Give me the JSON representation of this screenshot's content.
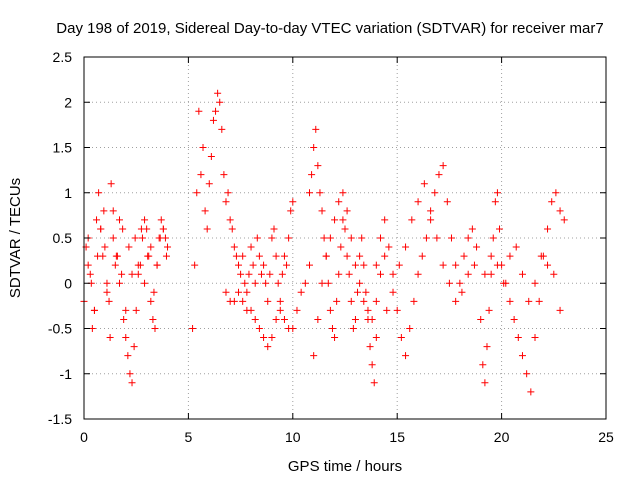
{
  "chart_data": {
    "type": "scatter",
    "title": "Day 198 of 2019, Sidereal Day-to-day VTEC variation (SDTVAR) for receiver mar7",
    "xlabel": "GPS time / hours",
    "ylabel": "SDTVAR / TECUs",
    "xlim": [
      0,
      25
    ],
    "ylim": [
      -1.5,
      2.5
    ],
    "xticks": [
      0,
      5,
      10,
      15,
      20,
      25
    ],
    "xtick_labels": [
      "0",
      "5",
      "10",
      "15",
      "20",
      "25"
    ],
    "yticks": [
      -1.5,
      -1,
      -0.5,
      0,
      0.5,
      1,
      1.5,
      2,
      2.5
    ],
    "ytick_labels": [
      "-1.5",
      "-1",
      "-0.5",
      "0",
      "0.5",
      "1",
      "1.5",
      "2",
      "2.5"
    ],
    "grid": true,
    "marker": "+",
    "series": [
      {
        "name": "mar7",
        "color": "#ff0000",
        "x": [
          0.0,
          0.1,
          0.2,
          0.3,
          0.4,
          0.5,
          0.6,
          0.7,
          0.8,
          0.9,
          1.0,
          1.1,
          1.2,
          1.3,
          1.4,
          1.5,
          1.6,
          1.7,
          1.8,
          1.9,
          2.0,
          2.1,
          2.2,
          2.3,
          2.4,
          2.5,
          2.6,
          2.7,
          2.8,
          2.9,
          3.0,
          3.1,
          3.2,
          3.3,
          3.4,
          3.5,
          3.6,
          3.7,
          3.8,
          3.9,
          4.0,
          0.2,
          0.35,
          0.5,
          0.65,
          0.8,
          0.95,
          1.1,
          1.25,
          1.4,
          1.55,
          1.7,
          1.85,
          2.0,
          2.15,
          2.3,
          2.45,
          2.6,
          2.75,
          2.9,
          3.05,
          3.2,
          3.35,
          3.5,
          3.65,
          3.8,
          3.95,
          5.2,
          5.3,
          5.4,
          5.5,
          5.6,
          5.7,
          5.8,
          5.9,
          6.0,
          6.1,
          6.2,
          6.3,
          6.4,
          6.5,
          6.6,
          6.7,
          6.8,
          6.9,
          7.0,
          7.1,
          7.2,
          7.3,
          7.4,
          7.5,
          7.6,
          7.7,
          7.8,
          7.9,
          8.0,
          8.1,
          8.2,
          8.3,
          8.4,
          8.5,
          8.6,
          8.7,
          8.8,
          8.9,
          9.0,
          9.1,
          9.2,
          9.3,
          9.4,
          9.5,
          9.6,
          9.7,
          9.8,
          9.9,
          10.0,
          6.8,
          7.0,
          7.2,
          7.4,
          7.6,
          7.8,
          8.0,
          8.2,
          8.4,
          8.6,
          8.8,
          9.0,
          9.2,
          9.4,
          9.6,
          9.8,
          10.0,
          10.2,
          10.4,
          10.6,
          10.8,
          10.8,
          10.9,
          11.0,
          11.1,
          11.2,
          11.3,
          11.4,
          11.5,
          11.6,
          11.7,
          11.8,
          11.9,
          12.0,
          12.1,
          12.2,
          12.3,
          12.4,
          12.5,
          12.6,
          12.7,
          12.8,
          12.9,
          13.0,
          13.1,
          13.2,
          13.3,
          13.4,
          13.5,
          13.6,
          13.7,
          13.8,
          13.9,
          14.0,
          11.0,
          11.2,
          11.4,
          11.6,
          11.8,
          12.0,
          12.2,
          12.4,
          12.6,
          12.8,
          13.0,
          13.2,
          13.4,
          13.6,
          13.8,
          14.0,
          14.2,
          14.4,
          14.0,
          14.2,
          14.4,
          14.6,
          14.8,
          15.0,
          15.2,
          15.4,
          15.6,
          15.8,
          16.0,
          16.2,
          16.4,
          16.6,
          16.8,
          17.0,
          17.2,
          17.4,
          17.6,
          17.8,
          18.0,
          18.2,
          18.4,
          18.6,
          18.8,
          14.5,
          14.8,
          15.1,
          15.4,
          15.7,
          16.0,
          16.3,
          16.6,
          16.9,
          17.2,
          17.5,
          17.8,
          18.1,
          18.4,
          18.7,
          19.0,
          19.1,
          19.2,
          19.3,
          19.4,
          19.5,
          19.6,
          19.7,
          19.8,
          19.9,
          20.0,
          20.2,
          20.4,
          20.6,
          20.8,
          21.0,
          21.2,
          21.4,
          21.6,
          21.8,
          22.0,
          22.2,
          22.4,
          22.6,
          22.8,
          23.0,
          19.2,
          19.5,
          19.8,
          20.1,
          20.4,
          20.7,
          21.0,
          21.3,
          21.6,
          21.9,
          22.2,
          22.5,
          22.8
        ],
        "y": [
          -0.2,
          0.4,
          0.5,
          0.1,
          -0.5,
          -0.3,
          0.7,
          1.0,
          0.6,
          0.3,
          0.4,
          0.0,
          -0.2,
          1.1,
          0.8,
          0.2,
          0.3,
          0.7,
          0.1,
          -0.4,
          -0.6,
          -0.8,
          -1.0,
          -1.1,
          -0.7,
          -0.3,
          0.1,
          0.2,
          0.5,
          0.7,
          0.6,
          0.3,
          -0.2,
          -0.4,
          -0.5,
          0.2,
          0.5,
          0.7,
          0.6,
          0.5,
          0.4,
          0.2,
          0.0,
          -0.3,
          0.3,
          0.6,
          0.8,
          -0.1,
          -0.6,
          0.5,
          0.3,
          0.0,
          0.6,
          -0.3,
          0.4,
          0.1,
          0.5,
          0.2,
          0.6,
          0.0,
          0.3,
          0.4,
          -0.1,
          0.2,
          0.5,
          0.6,
          0.3,
          -0.5,
          0.2,
          1.0,
          1.9,
          1.2,
          1.5,
          0.8,
          0.6,
          1.1,
          1.4,
          1.8,
          1.9,
          2.1,
          2.0,
          1.7,
          1.2,
          0.9,
          1.0,
          0.7,
          0.6,
          0.4,
          0.3,
          0.2,
          0.1,
          0.3,
          0.0,
          -0.1,
          0.1,
          0.4,
          0.2,
          0.0,
          0.5,
          0.3,
          0.1,
          0.2,
          0.0,
          -0.2,
          0.1,
          0.5,
          0.6,
          0.3,
          0.0,
          -0.2,
          0.1,
          0.3,
          0.2,
          0.5,
          0.8,
          0.9,
          -0.1,
          -0.2,
          -0.2,
          -0.1,
          -0.2,
          -0.3,
          -0.3,
          -0.4,
          -0.5,
          -0.6,
          -0.7,
          -0.6,
          -0.4,
          -0.3,
          -0.4,
          -0.5,
          -0.5,
          -0.3,
          -0.1,
          0.0,
          0.2,
          1.0,
          1.2,
          1.5,
          1.7,
          1.3,
          1.0,
          0.8,
          0.5,
          0.3,
          0.0,
          -0.3,
          -0.5,
          -0.6,
          -0.2,
          0.1,
          0.4,
          0.7,
          0.6,
          0.3,
          0.1,
          -0.2,
          -0.5,
          -0.4,
          -0.1,
          0.3,
          0.5,
          0.2,
          -0.1,
          -0.4,
          -0.7,
          -0.9,
          -1.1,
          -0.6,
          -0.8,
          -0.4,
          0.0,
          0.3,
          0.5,
          0.7,
          0.9,
          1.0,
          0.8,
          0.5,
          0.2,
          0.0,
          -0.2,
          -0.3,
          -0.4,
          -0.2,
          0.1,
          0.3,
          0.2,
          0.5,
          0.7,
          0.4,
          0.1,
          -0.3,
          -0.6,
          -0.8,
          -0.5,
          -0.2,
          0.1,
          0.3,
          0.5,
          0.7,
          1.0,
          1.2,
          1.3,
          0.9,
          0.5,
          0.2,
          0.0,
          0.3,
          0.5,
          0.6,
          0.4,
          -0.3,
          -0.1,
          0.2,
          0.4,
          0.7,
          0.9,
          1.1,
          0.8,
          0.5,
          0.2,
          0.0,
          -0.2,
          -0.1,
          0.1,
          0.2,
          -0.4,
          -0.9,
          -1.1,
          -0.7,
          -0.3,
          0.1,
          0.5,
          0.9,
          1.0,
          0.6,
          0.2,
          0.0,
          -0.2,
          -0.4,
          -0.6,
          -0.8,
          -1.0,
          -1.2,
          -0.6,
          -0.2,
          0.3,
          0.6,
          0.9,
          1.0,
          0.8,
          0.7,
          0.1,
          0.3,
          0.2,
          0.0,
          0.3,
          0.4,
          0.1,
          -0.2,
          0.0,
          0.3,
          0.2,
          0.1,
          -0.3
        ]
      }
    ]
  }
}
